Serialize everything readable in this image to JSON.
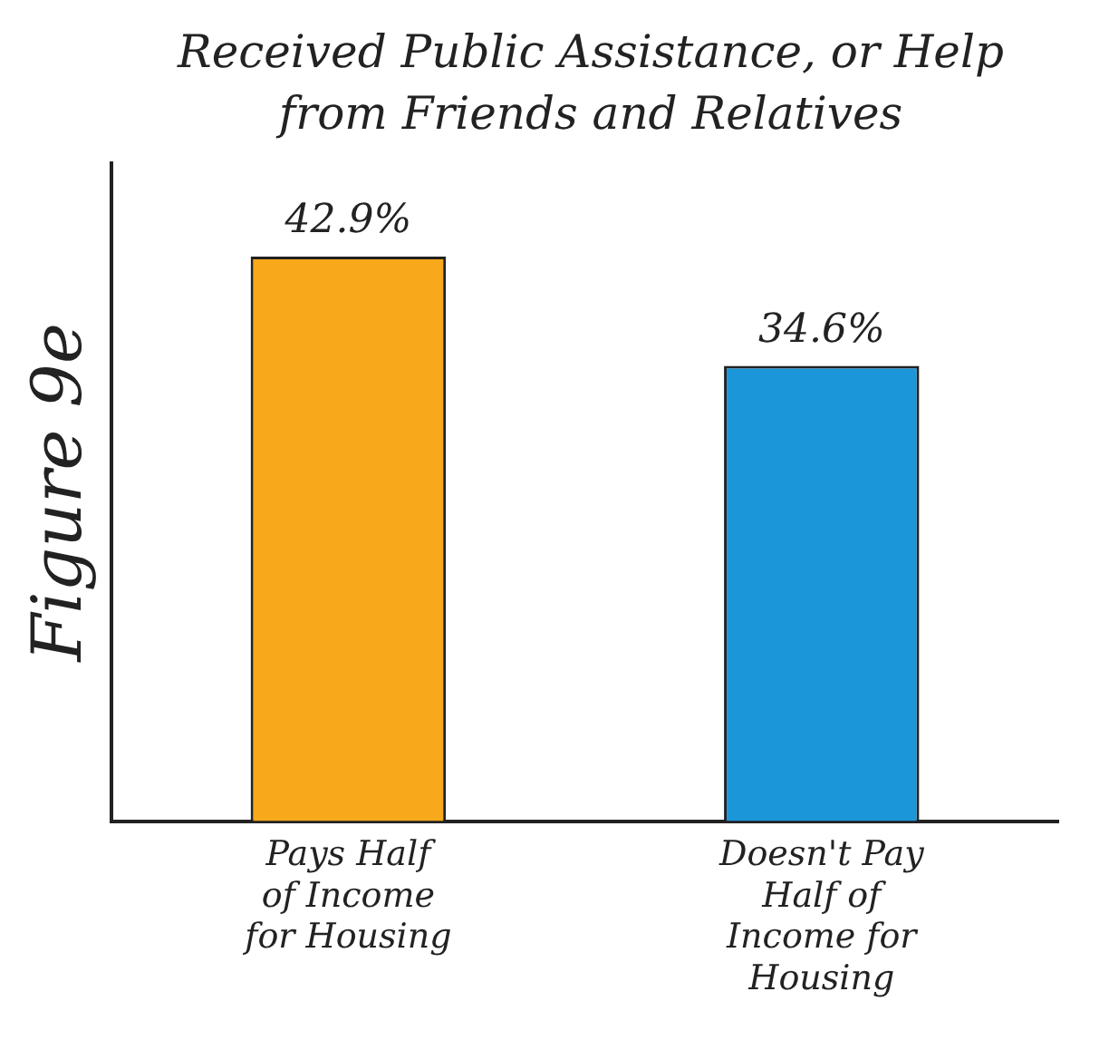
{
  "chart_data": {
    "type": "bar",
    "title": "Received Public Assistance, or Help from Friends and Relatives",
    "ylabel": "Figure 9e",
    "categories": [
      "Pays Half of Income for Housing",
      "Doesn't Pay Half of Income for Housing"
    ],
    "values": [
      42.9,
      34.6
    ],
    "colors": [
      "#f7a81b",
      "#1b96d8"
    ],
    "value_labels": [
      "42.9%",
      "34.6%"
    ],
    "grid": false,
    "legend": false
  }
}
